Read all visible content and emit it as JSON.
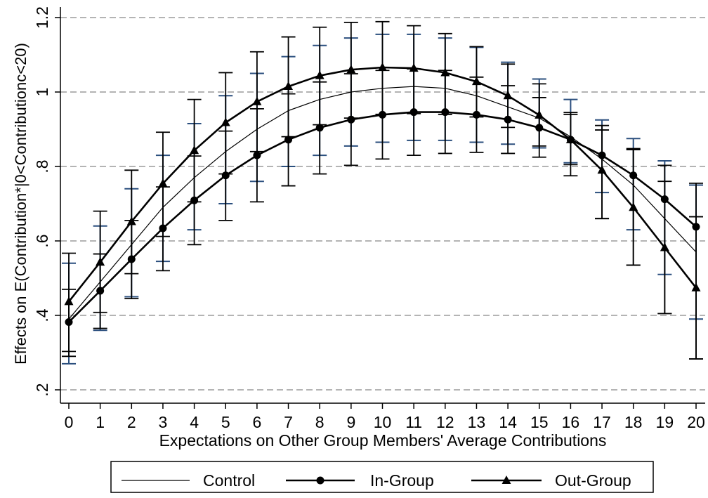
{
  "chart_data": {
    "type": "line",
    "title": "",
    "xlabel": "Expectations on Other Group Members' Average Contributions",
    "ylabel": "Effects on E(Contribution*|0<Contributionc<20)",
    "x": [
      0,
      1,
      2,
      3,
      4,
      5,
      6,
      7,
      8,
      9,
      10,
      11,
      12,
      13,
      14,
      15,
      16,
      17,
      18,
      19,
      20
    ],
    "xticks": [
      "0",
      "1",
      "2",
      "3",
      "4",
      "5",
      "6",
      "7",
      "8",
      "9",
      "10",
      "11",
      "12",
      "13",
      "14",
      "15",
      "16",
      "17",
      "18",
      "19",
      "20"
    ],
    "ylim": [
      0.18,
      1.22
    ],
    "yticks": [
      ".2",
      ".4",
      ".6",
      ".8",
      "1",
      "1.2"
    ],
    "ytick_values": [
      0.2,
      0.4,
      0.6,
      0.8,
      1.0,
      1.2
    ],
    "grid": "horizontal dashed",
    "legend_position": "bottom",
    "series": [
      {
        "name": "Control",
        "marker": "none",
        "line": "thin",
        "color": "#000000",
        "values": [
          0.39,
          0.49,
          0.59,
          0.69,
          0.77,
          0.84,
          0.9,
          0.95,
          0.98,
          1.0,
          1.01,
          1.015,
          1.01,
          0.99,
          0.96,
          0.93,
          0.88,
          0.82,
          0.75,
          0.66,
          0.57
        ],
        "ci_low": [
          0.27,
          0.36,
          0.45,
          0.545,
          0.63,
          0.7,
          0.76,
          0.8,
          0.83,
          0.855,
          0.865,
          0.87,
          0.87,
          0.865,
          0.86,
          0.85,
          0.81,
          0.73,
          0.63,
          0.51,
          0.39
        ],
        "ci_high": [
          0.54,
          0.64,
          0.74,
          0.83,
          0.915,
          0.99,
          1.05,
          1.095,
          1.125,
          1.145,
          1.155,
          1.155,
          1.145,
          1.12,
          1.08,
          1.035,
          0.98,
          0.925,
          0.875,
          0.815,
          0.75
        ]
      },
      {
        "name": "In-Group",
        "marker": "circle",
        "line": "thick",
        "color": "#000000",
        "values": [
          0.382,
          0.466,
          0.551,
          0.634,
          0.709,
          0.776,
          0.83,
          0.872,
          0.904,
          0.926,
          0.939,
          0.946,
          0.946,
          0.939,
          0.926,
          0.904,
          0.872,
          0.83,
          0.776,
          0.712,
          0.638
        ],
        "ci_low": [
          0.29,
          0.365,
          0.445,
          0.52,
          0.59,
          0.655,
          0.705,
          0.748,
          0.78,
          0.803,
          0.82,
          0.83,
          0.835,
          0.838,
          0.835,
          0.825,
          0.775,
          0.66,
          0.535,
          0.405,
          0.283
        ],
        "ci_high": [
          0.47,
          0.565,
          0.655,
          0.745,
          0.828,
          0.895,
          0.955,
          0.995,
          1.027,
          1.049,
          1.058,
          1.062,
          1.058,
          1.04,
          1.017,
          0.985,
          0.94,
          0.898,
          0.848,
          0.803,
          0.755
        ]
      },
      {
        "name": "Out-Group",
        "marker": "triangle",
        "line": "thick",
        "color": "#000000",
        "values": [
          0.437,
          0.543,
          0.652,
          0.754,
          0.843,
          0.918,
          0.974,
          1.015,
          1.044,
          1.06,
          1.066,
          1.064,
          1.052,
          1.028,
          0.99,
          0.938,
          0.872,
          0.79,
          0.69,
          0.582,
          0.474
        ],
        "ci_low": [
          0.303,
          0.408,
          0.512,
          0.612,
          0.705,
          0.78,
          0.84,
          0.88,
          0.912,
          0.93,
          0.94,
          0.942,
          0.94,
          0.933,
          0.905,
          0.855,
          0.805,
          0.66,
          0.535,
          0.405,
          0.283
        ],
        "ci_high": [
          0.567,
          0.68,
          0.79,
          0.892,
          0.98,
          1.052,
          1.108,
          1.148,
          1.174,
          1.187,
          1.189,
          1.178,
          1.157,
          1.122,
          1.075,
          1.022,
          0.945,
          0.91,
          0.845,
          0.76,
          0.665
        ]
      }
    ]
  }
}
